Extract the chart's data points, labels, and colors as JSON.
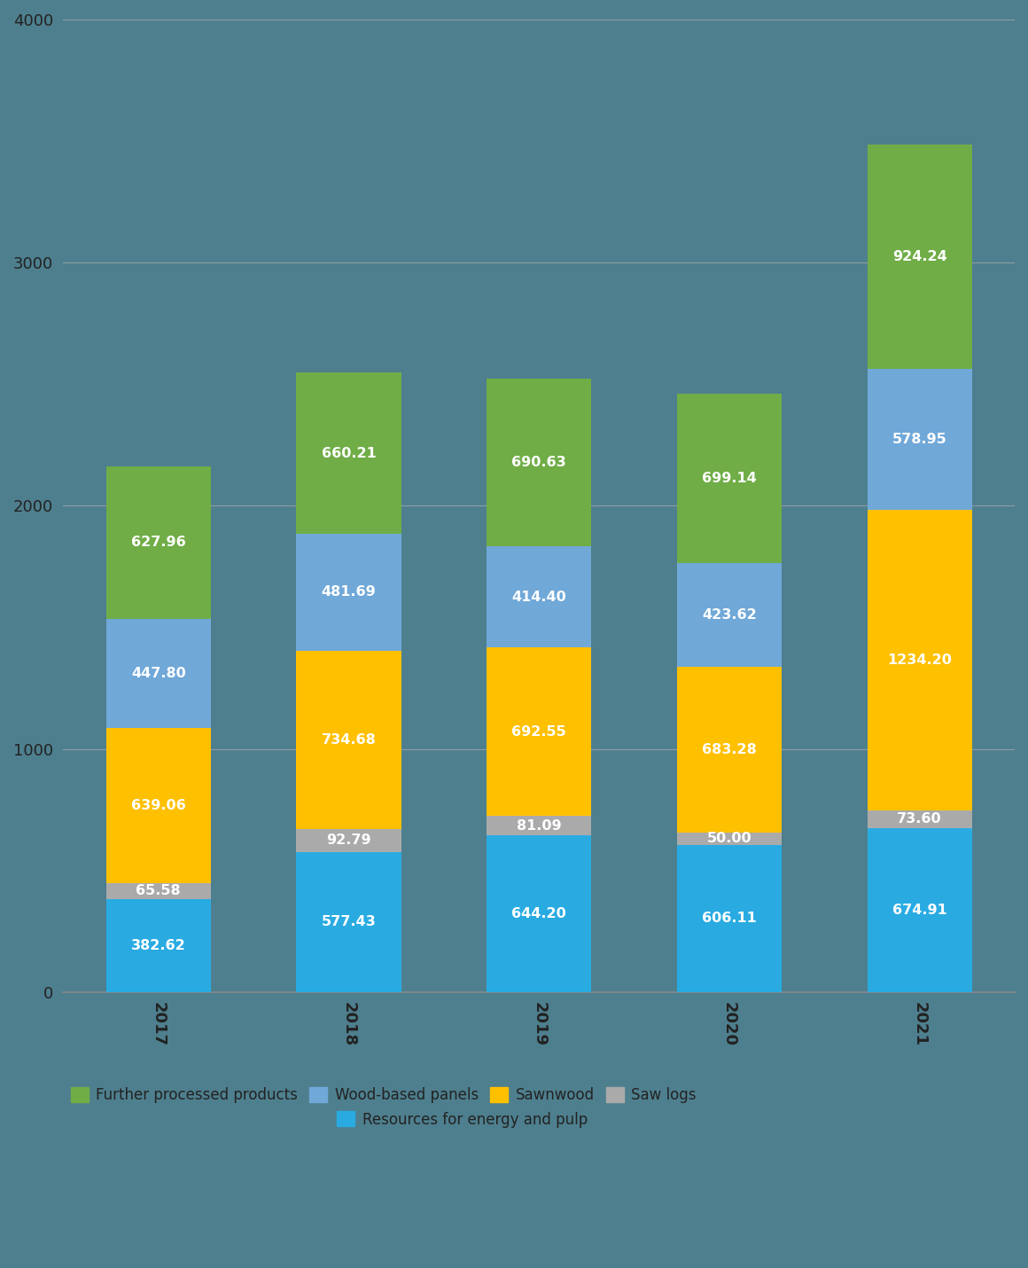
{
  "years": [
    "2017",
    "2018",
    "2019",
    "2020",
    "2021"
  ],
  "categories": [
    "Resources for energy and pulp",
    "Saw logs",
    "Sawnwood",
    "Wood-based panels",
    "Further processed products"
  ],
  "values": {
    "Resources for energy and pulp": [
      382.62,
      577.43,
      644.2,
      606.11,
      674.91
    ],
    "Saw logs": [
      65.58,
      92.79,
      81.09,
      50.0,
      73.6
    ],
    "Sawnwood": [
      639.06,
      734.68,
      692.55,
      683.28,
      1234.2
    ],
    "Wood-based panels": [
      447.8,
      481.69,
      414.4,
      423.62,
      578.95
    ],
    "Further processed products": [
      627.96,
      660.21,
      690.63,
      699.14,
      924.24
    ]
  },
  "colors": {
    "Resources for energy and pulp": "#29ABE2",
    "Saw logs": "#AAAAAA",
    "Sawnwood": "#FFC000",
    "Wood-based panels": "#70A8D8",
    "Further processed products": "#70AD47"
  },
  "ylim": [
    0,
    4000
  ],
  "yticks": [
    0,
    1000,
    2000,
    3000,
    4000
  ],
  "background_color": "#4E7F8E",
  "plot_bg_color": "#4E7F8E",
  "grid_color": "#AAAAAA",
  "tick_label_color": "#222222",
  "bar_width": 0.55,
  "figsize": [
    11.6,
    14.3
  ],
  "dpi": 100,
  "label_fontsize": 13,
  "value_fontsize": 11.5,
  "legend_fontsize": 12
}
